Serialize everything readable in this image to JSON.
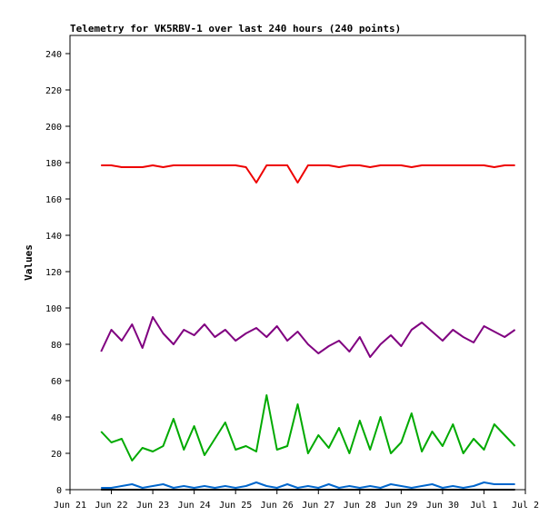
{
  "chart_data": {
    "type": "line",
    "title": "Telemetry for VK5RBV-1 over last 240 hours (240 points)",
    "xlabel": "",
    "ylabel": "Values",
    "ylim": [
      0,
      250
    ],
    "yticks": [
      0,
      20,
      40,
      60,
      80,
      100,
      120,
      140,
      160,
      180,
      200,
      220,
      240
    ],
    "xlim": [
      "2015-06-21",
      "2015-07-02"
    ],
    "xticks": [
      "Jun 21",
      "Jun 22",
      "Jun 23",
      "Jun 24",
      "Jun 25",
      "Jun 26",
      "Jun 27",
      "Jun 28",
      "Jun 29",
      "Jun 30",
      "Jul 1",
      "Jul 2"
    ],
    "grid": false,
    "legend": "none",
    "series": [
      {
        "color": "#ee0000",
        "x": [
          "2015-06-21T18:00",
          "2015-06-22T00:00",
          "2015-06-22T06:00",
          "2015-06-22T12:00",
          "2015-06-22T18:00",
          "2015-06-23T00:00",
          "2015-06-23T06:00",
          "2015-06-23T12:00",
          "2015-06-23T18:00",
          "2015-06-24T00:00",
          "2015-06-24T06:00",
          "2015-06-24T12:00",
          "2015-06-24T18:00",
          "2015-06-25T00:00",
          "2015-06-25T06:00",
          "2015-06-25T12:00",
          "2015-06-25T18:00",
          "2015-06-26T00:00",
          "2015-06-26T06:00",
          "2015-06-26T12:00",
          "2015-06-26T18:00",
          "2015-06-27T00:00",
          "2015-06-27T06:00",
          "2015-06-27T12:00",
          "2015-06-27T18:00",
          "2015-06-28T00:00",
          "2015-06-28T06:00",
          "2015-06-28T12:00",
          "2015-06-28T18:00",
          "2015-06-29T00:00",
          "2015-06-29T06:00",
          "2015-06-29T12:00",
          "2015-06-29T18:00",
          "2015-06-30T00:00",
          "2015-06-30T06:00",
          "2015-06-30T12:00",
          "2015-06-30T18:00",
          "2015-07-01T00:00",
          "2015-07-01T06:00",
          "2015-07-01T12:00",
          "2015-07-01T18:00"
        ],
        "y": [
          178.5,
          178.5,
          177.5,
          177.5,
          177.5,
          178.5,
          177.5,
          178.5,
          178.5,
          178.5,
          178.5,
          178.5,
          178.5,
          178.5,
          177.5,
          169,
          178.5,
          178.5,
          178.5,
          169,
          178.5,
          178.5,
          178.5,
          177.5,
          178.5,
          178.5,
          177.5,
          178.5,
          178.5,
          178.5,
          177.5,
          178.5,
          178.5,
          178.5,
          178.5,
          178.5,
          178.5,
          178.5,
          177.5,
          178.5,
          178.5
        ]
      },
      {
        "color": "#800080",
        "x": [
          "2015-06-21T18:00",
          "2015-06-22T00:00",
          "2015-06-22T06:00",
          "2015-06-22T12:00",
          "2015-06-22T18:00",
          "2015-06-23T00:00",
          "2015-06-23T06:00",
          "2015-06-23T12:00",
          "2015-06-23T18:00",
          "2015-06-24T00:00",
          "2015-06-24T06:00",
          "2015-06-24T12:00",
          "2015-06-24T18:00",
          "2015-06-25T00:00",
          "2015-06-25T06:00",
          "2015-06-25T12:00",
          "2015-06-25T18:00",
          "2015-06-26T00:00",
          "2015-06-26T06:00",
          "2015-06-26T12:00",
          "2015-06-26T18:00",
          "2015-06-27T00:00",
          "2015-06-27T06:00",
          "2015-06-27T12:00",
          "2015-06-27T18:00",
          "2015-06-28T00:00",
          "2015-06-28T06:00",
          "2015-06-28T12:00",
          "2015-06-28T18:00",
          "2015-06-29T00:00",
          "2015-06-29T06:00",
          "2015-06-29T12:00",
          "2015-06-29T18:00",
          "2015-06-30T00:00",
          "2015-06-30T06:00",
          "2015-06-30T12:00",
          "2015-06-30T18:00",
          "2015-07-01T00:00",
          "2015-07-01T06:00",
          "2015-07-01T12:00",
          "2015-07-01T18:00"
        ],
        "y": [
          76,
          88,
          82,
          91,
          78,
          95,
          86,
          80,
          88,
          85,
          91,
          84,
          88,
          82,
          86,
          89,
          84,
          90,
          82,
          87,
          80,
          75,
          79,
          82,
          76,
          84,
          73,
          80,
          85,
          79,
          88,
          92,
          87,
          82,
          88,
          84,
          81,
          90,
          87,
          84,
          88
        ]
      },
      {
        "color": "#00aa00",
        "x": [
          "2015-06-21T18:00",
          "2015-06-22T00:00",
          "2015-06-22T06:00",
          "2015-06-22T12:00",
          "2015-06-22T18:00",
          "2015-06-23T00:00",
          "2015-06-23T06:00",
          "2015-06-23T12:00",
          "2015-06-23T18:00",
          "2015-06-24T00:00",
          "2015-06-24T06:00",
          "2015-06-24T12:00",
          "2015-06-24T18:00",
          "2015-06-25T00:00",
          "2015-06-25T06:00",
          "2015-06-25T12:00",
          "2015-06-25T18:00",
          "2015-06-26T00:00",
          "2015-06-26T06:00",
          "2015-06-26T12:00",
          "2015-06-26T18:00",
          "2015-06-27T00:00",
          "2015-06-27T06:00",
          "2015-06-27T12:00",
          "2015-06-27T18:00",
          "2015-06-28T00:00",
          "2015-06-28T06:00",
          "2015-06-28T12:00",
          "2015-06-28T18:00",
          "2015-06-29T00:00",
          "2015-06-29T06:00",
          "2015-06-29T12:00",
          "2015-06-29T18:00",
          "2015-06-30T00:00",
          "2015-06-30T06:00",
          "2015-06-30T12:00",
          "2015-06-30T18:00",
          "2015-07-01T00:00",
          "2015-07-01T06:00",
          "2015-07-01T12:00",
          "2015-07-01T18:00"
        ],
        "y": [
          32,
          26,
          28,
          16,
          23,
          21,
          24,
          39,
          22,
          35,
          19,
          28,
          37,
          22,
          24,
          21,
          52,
          22,
          24,
          47,
          20,
          30,
          23,
          34,
          20,
          38,
          22,
          40,
          20,
          26,
          42,
          21,
          32,
          24,
          36,
          20,
          28,
          22,
          36,
          30,
          24
        ]
      },
      {
        "color": "#0066cc",
        "x": [
          "2015-06-21T18:00",
          "2015-06-22T00:00",
          "2015-06-22T06:00",
          "2015-06-22T12:00",
          "2015-06-22T18:00",
          "2015-06-23T00:00",
          "2015-06-23T06:00",
          "2015-06-23T12:00",
          "2015-06-23T18:00",
          "2015-06-24T00:00",
          "2015-06-24T06:00",
          "2015-06-24T12:00",
          "2015-06-24T18:00",
          "2015-06-25T00:00",
          "2015-06-25T06:00",
          "2015-06-25T12:00",
          "2015-06-25T18:00",
          "2015-06-26T00:00",
          "2015-06-26T06:00",
          "2015-06-26T12:00",
          "2015-06-26T18:00",
          "2015-06-27T00:00",
          "2015-06-27T06:00",
          "2015-06-27T12:00",
          "2015-06-27T18:00",
          "2015-06-28T00:00",
          "2015-06-28T06:00",
          "2015-06-28T12:00",
          "2015-06-28T18:00",
          "2015-06-29T00:00",
          "2015-06-29T06:00",
          "2015-06-29T12:00",
          "2015-06-29T18:00",
          "2015-06-30T00:00",
          "2015-06-30T06:00",
          "2015-06-30T12:00",
          "2015-06-30T18:00",
          "2015-07-01T00:00",
          "2015-07-01T06:00",
          "2015-07-01T12:00",
          "2015-07-01T18:00"
        ],
        "y": [
          1,
          1,
          2,
          3,
          1,
          2,
          3,
          1,
          2,
          1,
          2,
          1,
          2,
          1,
          2,
          4,
          2,
          1,
          3,
          1,
          2,
          1,
          3,
          1,
          2,
          1,
          2,
          1,
          3,
          2,
          1,
          2,
          3,
          1,
          2,
          1,
          2,
          4,
          3,
          3,
          3
        ]
      },
      {
        "color": "#000000",
        "x": [
          "2015-06-21T18:00",
          "2015-07-01T18:00"
        ],
        "y": [
          0,
          0
        ]
      }
    ]
  }
}
